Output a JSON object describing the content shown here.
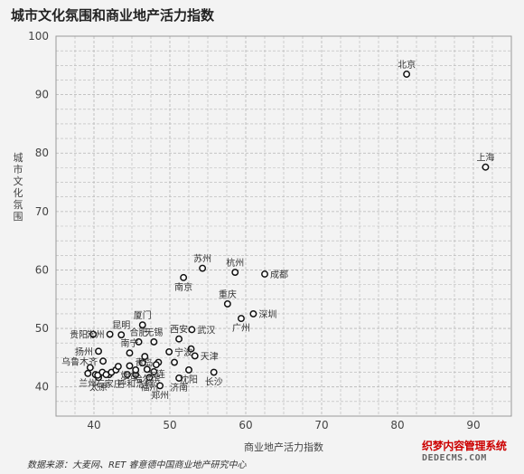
{
  "header": {
    "title": "城市文化氛围和商业地产活力指数"
  },
  "footer": {
    "source": "数据来源：大麦网、RET 睿意德中国商业地产研究中心"
  },
  "watermark": {
    "line1": "织梦内容管理系统",
    "line2": "DEDECMS.COM"
  },
  "chart_data": {
    "type": "scatter",
    "title": "城市文化氛围和商业地产活力指数",
    "xlabel": "商业地产活力指数",
    "ylabel": "城市文化氛围",
    "xlim": [
      35,
      95
    ],
    "ylim": [
      35,
      100
    ],
    "x_ticks": [
      40,
      50,
      60,
      70,
      80,
      90
    ],
    "y_ticks": [
      40,
      50,
      60,
      70,
      80,
      90,
      100
    ],
    "grid": true,
    "colors": {
      "marker_stroke": "#111111",
      "marker_fill": "#ffffff",
      "grid": "#b5b5b5",
      "background": "#f3f3f3"
    },
    "points": [
      {
        "name": "北京",
        "x": 81.2,
        "y": 93.5,
        "label_pos": "above"
      },
      {
        "name": "上海",
        "x": 91.6,
        "y": 77.6,
        "label_pos": "above"
      },
      {
        "name": "苏州",
        "x": 54.3,
        "y": 60.3,
        "label_pos": "above"
      },
      {
        "name": "杭州",
        "x": 58.6,
        "y": 59.6,
        "label_pos": "above"
      },
      {
        "name": "成都",
        "x": 62.5,
        "y": 59.3,
        "label_pos": "right"
      },
      {
        "name": "南京",
        "x": 51.8,
        "y": 58.7,
        "label_pos": "below"
      },
      {
        "name": "重庆",
        "x": 57.6,
        "y": 54.2,
        "label_pos": "above"
      },
      {
        "name": "深圳",
        "x": 61.0,
        "y": 52.5,
        "label_pos": "right"
      },
      {
        "name": "广州",
        "x": 59.4,
        "y": 51.7,
        "label_pos": "below"
      },
      {
        "name": "西安",
        "x": 51.2,
        "y": 48.2,
        "label_pos": "above"
      },
      {
        "name": "武汉",
        "x": 52.9,
        "y": 49.8,
        "label_pos": "right"
      },
      {
        "name": "天津",
        "x": 53.3,
        "y": 45.3,
        "label_pos": "right"
      },
      {
        "name": "长沙",
        "x": 55.8,
        "y": 42.5,
        "label_pos": "below"
      },
      {
        "name": "沈阳",
        "x": 52.5,
        "y": 42.9,
        "label_pos": "below"
      },
      {
        "name": "宁波",
        "x": 49.9,
        "y": 46.0,
        "label_pos": "right"
      },
      {
        "name": "青岛",
        "x": 48.5,
        "y": 44.2,
        "label_pos": "left"
      },
      {
        "name": "大连",
        "x": 48.2,
        "y": 43.8,
        "label_pos": "below"
      },
      {
        "name": "济南",
        "x": 51.2,
        "y": 41.5,
        "label_pos": "below"
      },
      {
        "name": "哈尔滨",
        "x": 47.0,
        "y": 43.0,
        "label_pos": "below"
      },
      {
        "name": "福州",
        "x": 47.3,
        "y": 41.6,
        "label_pos": "below"
      },
      {
        "name": "郑州",
        "x": 48.7,
        "y": 40.2,
        "label_pos": "below"
      },
      {
        "name": "厦门",
        "x": 46.4,
        "y": 50.6,
        "label_pos": "above"
      },
      {
        "name": "昆明",
        "x": 43.6,
        "y": 48.9,
        "label_pos": "above"
      },
      {
        "name": "合肥",
        "x": 45.9,
        "y": 47.7,
        "label_pos": "above"
      },
      {
        "name": "无锡",
        "x": 47.9,
        "y": 47.7,
        "label_pos": "above"
      },
      {
        "name": "南宁",
        "x": 44.7,
        "y": 45.8,
        "label_pos": "above"
      },
      {
        "name": "贵阳",
        "x": 39.9,
        "y": 49.0,
        "label_pos": "left"
      },
      {
        "name": "常州",
        "x": 42.1,
        "y": 49.0,
        "label_pos": "left"
      },
      {
        "name": "扬州",
        "x": 40.6,
        "y": 46.1,
        "label_pos": "left"
      },
      {
        "name": "乌鲁木齐",
        "x": 41.2,
        "y": 44.4,
        "label_pos": "left"
      },
      {
        "name": "兰州",
        "x": 39.2,
        "y": 42.3,
        "label_pos": "below"
      },
      {
        "name": "石家庄",
        "x": 42.0,
        "y": 42.1,
        "label_pos": "below"
      },
      {
        "name": "太原",
        "x": 40.6,
        "y": 41.6,
        "label_pos": "below"
      },
      {
        "name": "烟台",
        "x": 44.7,
        "y": 43.6,
        "label_pos": "below"
      },
      {
        "name": "呼和浩特",
        "x": 45.5,
        "y": 42.1,
        "label_pos": "below"
      },
      {
        "name": "",
        "x": 39.5,
        "y": 43.3
      },
      {
        "name": "",
        "x": 40.2,
        "y": 42.1
      },
      {
        "name": "",
        "x": 40.5,
        "y": 42.0
      },
      {
        "name": "",
        "x": 41.1,
        "y": 42.5
      },
      {
        "name": "",
        "x": 41.6,
        "y": 42.1
      },
      {
        "name": "",
        "x": 42.3,
        "y": 42.5
      },
      {
        "name": "",
        "x": 42.9,
        "y": 42.9
      },
      {
        "name": "",
        "x": 43.2,
        "y": 43.5
      },
      {
        "name": "",
        "x": 44.4,
        "y": 42.1
      },
      {
        "name": "",
        "x": 45.5,
        "y": 42.9
      },
      {
        "name": "",
        "x": 46.4,
        "y": 44.1
      },
      {
        "name": "",
        "x": 46.7,
        "y": 45.2
      },
      {
        "name": "",
        "x": 47.9,
        "y": 42.6
      },
      {
        "name": "",
        "x": 50.6,
        "y": 44.2
      },
      {
        "name": "",
        "x": 52.8,
        "y": 46.5
      }
    ]
  }
}
